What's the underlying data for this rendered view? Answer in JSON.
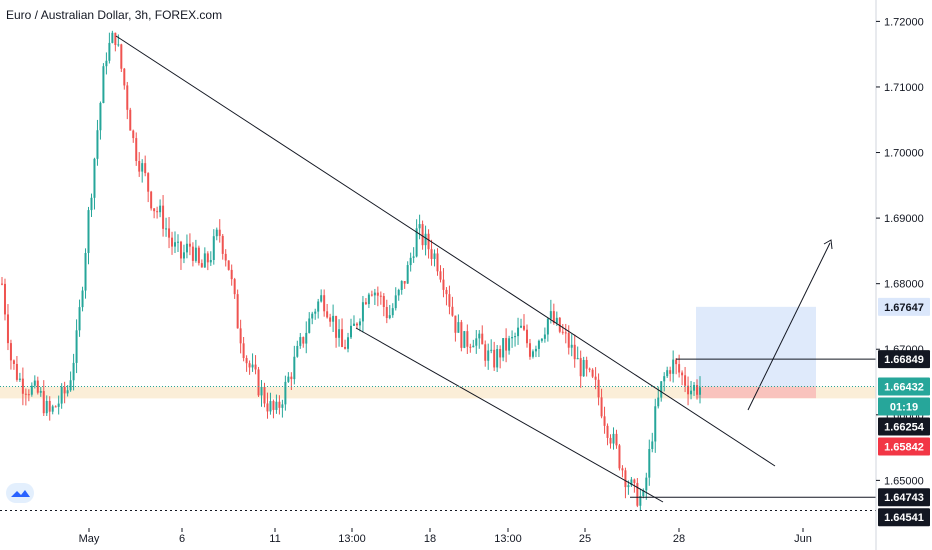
{
  "title": "Euro / Australian Dollar, 3h, FOREX.com",
  "colors": {
    "up": "#26a69a",
    "down": "#ef5350",
    "line": "#131722",
    "accent": "#2962ff"
  },
  "chart_data": {
    "type": "candlestick",
    "ylim": [
      1.6435,
      1.7225
    ],
    "yticks": [
      "1.72000",
      "1.71000",
      "1.70000",
      "1.69000",
      "1.68000",
      "1.67000",
      "1.66000",
      "1.65000"
    ],
    "ytick_values": [
      1.72,
      1.71,
      1.7,
      1.69,
      1.68,
      1.67,
      1.66,
      1.65
    ],
    "xticks": [
      "May",
      "6",
      "11",
      "13:00",
      "18",
      "13:00",
      "25",
      "28",
      "Jun"
    ],
    "price_tags": [
      {
        "label": "1.67647",
        "value": 1.67647,
        "style": "light-blue"
      },
      {
        "label": "1.66849",
        "value": 1.66849,
        "style": "black"
      },
      {
        "label": "1.66432",
        "value": 1.66432,
        "style": "teal"
      },
      {
        "label": "01:19",
        "value": 1.6625,
        "style": "teal"
      },
      {
        "label": "1.66254",
        "value": 1.66254,
        "style": "black"
      },
      {
        "label": "1.65842",
        "value": 1.65842,
        "style": "red"
      },
      {
        "label": "1.64743",
        "value": 1.64743,
        "style": "black"
      },
      {
        "label": "1.64541",
        "value": 1.64541,
        "style": "black"
      }
    ],
    "support_zone": [
      1.6625,
      1.6643
    ],
    "long_position": {
      "entry": 1.6643,
      "target": 1.67647,
      "stop": 1.66254
    },
    "path": [
      1.68,
      1.668,
      1.665,
      1.664,
      1.663,
      1.66,
      1.662,
      1.664,
      1.672,
      1.688,
      1.702,
      1.715,
      1.718,
      1.71,
      1.701,
      1.697,
      1.692,
      1.69,
      1.686,
      1.684,
      1.686,
      1.682,
      1.684,
      1.688,
      1.683,
      1.674,
      1.668,
      1.665,
      1.662,
      1.66,
      1.664,
      1.668,
      1.672,
      1.676,
      1.678,
      1.675,
      1.67,
      1.672,
      1.676,
      1.68,
      1.678,
      1.675,
      1.678,
      1.682,
      1.688,
      1.686,
      1.684,
      1.68,
      1.674,
      1.671,
      1.672,
      1.67,
      1.668,
      1.67,
      1.671,
      1.673,
      1.67,
      1.672,
      1.675,
      1.673,
      1.671,
      1.668,
      1.666,
      1.664,
      1.659,
      1.655,
      1.651,
      1.648,
      1.647,
      1.658,
      1.665,
      1.668,
      1.666,
      1.664,
      1.6643
    ]
  }
}
